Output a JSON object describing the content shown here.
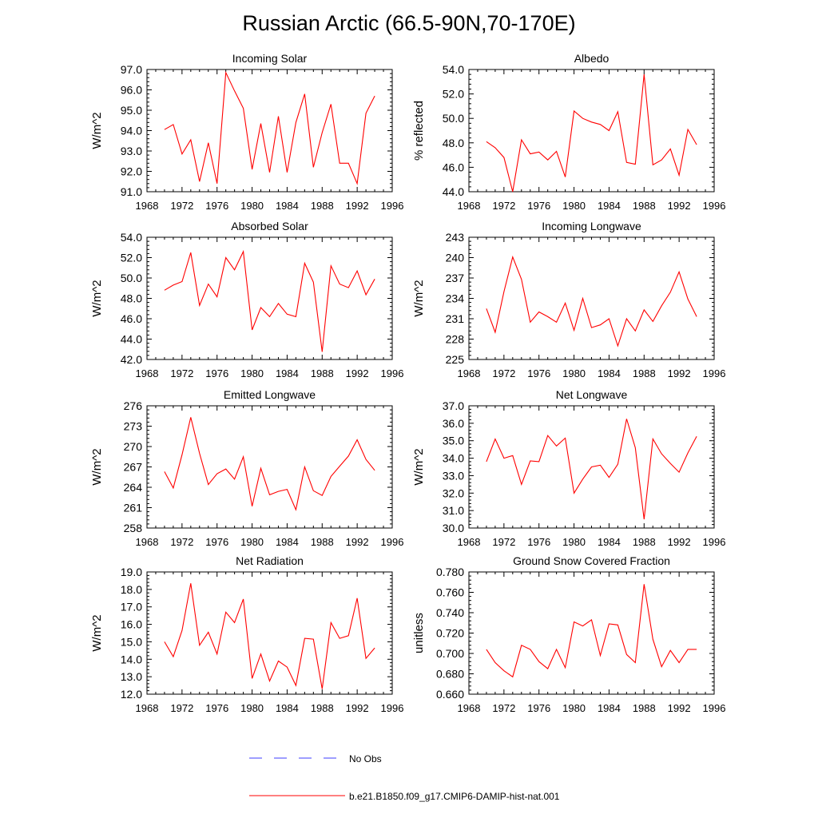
{
  "title": "Russian Arctic (66.5-90N,70-170E)",
  "legend": {
    "obs_label": "No Obs",
    "model_label": "b.e21.B1850.f09_g17.CMIP6-DAMIP-hist-nat.001",
    "obs_color": "#3d3dff",
    "model_color": "#ff0000"
  },
  "chart_data": [
    {
      "type": "line",
      "title": "Incoming Solar",
      "ylabel": "W/m^2",
      "xlim": [
        1968,
        1996
      ],
      "xticks": [
        "1968",
        "1972",
        "1976",
        "1980",
        "1984",
        "1988",
        "1992",
        "1996"
      ],
      "ylim": [
        91.0,
        97.0
      ],
      "yticks": [
        "91.0",
        "92.0",
        "93.0",
        "94.0",
        "95.0",
        "96.0",
        "97.0"
      ],
      "x": [
        1970,
        1971,
        1972,
        1973,
        1974,
        1975,
        1976,
        1977,
        1978,
        1979,
        1980,
        1981,
        1982,
        1983,
        1984,
        1985,
        1986,
        1987,
        1988,
        1989,
        1990,
        1991,
        1992,
        1993,
        1994
      ],
      "series": [
        {
          "values": [
            94.05,
            94.3,
            92.85,
            93.55,
            91.5,
            93.4,
            91.4,
            96.85,
            95.95,
            95.1,
            92.1,
            94.35,
            91.95,
            94.7,
            91.95,
            94.4,
            95.8,
            92.2,
            93.9,
            95.3,
            92.4,
            92.4,
            91.4,
            94.85,
            95.7
          ]
        }
      ]
    },
    {
      "type": "line",
      "title": "Albedo",
      "ylabel": "% reflected",
      "xlim": [
        1968,
        1996
      ],
      "xticks": [
        "1968",
        "1972",
        "1976",
        "1980",
        "1984",
        "1988",
        "1992",
        "1996"
      ],
      "ylim": [
        44.0,
        54.0
      ],
      "yticks": [
        "44.0",
        "46.0",
        "48.0",
        "50.0",
        "52.0",
        "54.0"
      ],
      "x": [
        1970,
        1971,
        1972,
        1973,
        1974,
        1975,
        1976,
        1977,
        1978,
        1979,
        1980,
        1981,
        1982,
        1983,
        1984,
        1985,
        1986,
        1987,
        1988,
        1989,
        1990,
        1991,
        1992,
        1993,
        1994
      ],
      "series": [
        {
          "values": [
            48.1,
            47.6,
            46.8,
            44.0,
            48.25,
            47.1,
            47.25,
            46.6,
            47.3,
            45.2,
            50.6,
            50.0,
            49.7,
            49.5,
            49.0,
            50.55,
            46.4,
            46.25,
            53.6,
            46.2,
            46.6,
            47.5,
            45.35,
            49.1,
            47.85
          ]
        }
      ]
    },
    {
      "type": "line",
      "title": "Absorbed Solar",
      "ylabel": "W/m^2",
      "xlim": [
        1968,
        1996
      ],
      "xticks": [
        "1968",
        "1972",
        "1976",
        "1980",
        "1984",
        "1988",
        "1992",
        "1996"
      ],
      "ylim": [
        42.0,
        54.0
      ],
      "yticks": [
        "42.0",
        "44.0",
        "46.0",
        "48.0",
        "50.0",
        "52.0",
        "54.0"
      ],
      "x": [
        1970,
        1971,
        1972,
        1973,
        1974,
        1975,
        1976,
        1977,
        1978,
        1979,
        1980,
        1981,
        1982,
        1983,
        1984,
        1985,
        1986,
        1987,
        1988,
        1989,
        1990,
        1991,
        1992,
        1993,
        1994
      ],
      "series": [
        {
          "values": [
            48.8,
            49.3,
            49.65,
            52.5,
            47.3,
            49.4,
            48.15,
            52.0,
            50.8,
            52.6,
            44.9,
            47.1,
            46.2,
            47.5,
            46.45,
            46.2,
            51.45,
            49.6,
            42.75,
            51.2,
            49.4,
            49.05,
            50.7,
            48.35,
            49.9
          ]
        }
      ]
    },
    {
      "type": "line",
      "title": "Incoming Longwave",
      "ylabel": "W/m^2",
      "xlim": [
        1968,
        1996
      ],
      "xticks": [
        "1968",
        "1972",
        "1976",
        "1980",
        "1984",
        "1988",
        "1992",
        "1996"
      ],
      "ylim": [
        225,
        243
      ],
      "yticks": [
        "225",
        "228",
        "231",
        "234",
        "237",
        "240",
        "243"
      ],
      "x": [
        1970,
        1971,
        1972,
        1973,
        1974,
        1975,
        1976,
        1977,
        1978,
        1979,
        1980,
        1981,
        1982,
        1983,
        1984,
        1985,
        1986,
        1987,
        1988,
        1989,
        1990,
        1991,
        1992,
        1993,
        1994
      ],
      "series": [
        {
          "values": [
            232.5,
            229.0,
            235.0,
            240.1,
            236.8,
            230.5,
            232.0,
            231.3,
            230.5,
            233.3,
            229.3,
            234.0,
            229.7,
            230.1,
            231.0,
            227.0,
            231.0,
            229.2,
            232.3,
            230.6,
            232.9,
            234.9,
            237.9,
            233.9,
            231.3
          ]
        }
      ]
    },
    {
      "type": "line",
      "title": "Emitted Longwave",
      "ylabel": "W/m^2",
      "xlim": [
        1968,
        1996
      ],
      "xticks": [
        "1968",
        "1972",
        "1976",
        "1980",
        "1984",
        "1988",
        "1992",
        "1996"
      ],
      "ylim": [
        258,
        276
      ],
      "yticks": [
        "258",
        "261",
        "264",
        "267",
        "270",
        "273",
        "276"
      ],
      "x": [
        1970,
        1971,
        1972,
        1973,
        1974,
        1975,
        1976,
        1977,
        1978,
        1979,
        1980,
        1981,
        1982,
        1983,
        1984,
        1985,
        1986,
        1987,
        1988,
        1989,
        1990,
        1991,
        1992,
        1993,
        1994
      ],
      "series": [
        {
          "values": [
            266.3,
            263.9,
            268.8,
            274.3,
            269.0,
            264.4,
            266.0,
            266.7,
            265.2,
            268.5,
            261.2,
            266.8,
            262.9,
            263.4,
            263.7,
            260.7,
            267.0,
            263.5,
            262.8,
            265.6,
            267.1,
            268.6,
            271.0,
            268.1,
            266.5
          ]
        }
      ]
    },
    {
      "type": "line",
      "title": "Net Longwave",
      "ylabel": "W/m^2",
      "xlim": [
        1968,
        1996
      ],
      "xticks": [
        "1968",
        "1972",
        "1976",
        "1980",
        "1984",
        "1988",
        "1992",
        "1996"
      ],
      "ylim": [
        30.0,
        37.0
      ],
      "yticks": [
        "30.0",
        "31.0",
        "32.0",
        "33.0",
        "34.0",
        "35.0",
        "36.0",
        "37.0"
      ],
      "x": [
        1970,
        1971,
        1972,
        1973,
        1974,
        1975,
        1976,
        1977,
        1978,
        1979,
        1980,
        1981,
        1982,
        1983,
        1984,
        1985,
        1986,
        1987,
        1988,
        1989,
        1990,
        1991,
        1992,
        1993,
        1994
      ],
      "series": [
        {
          "values": [
            33.8,
            35.1,
            34.0,
            34.15,
            32.5,
            33.85,
            33.8,
            35.3,
            34.7,
            35.15,
            32.0,
            32.8,
            33.5,
            33.6,
            32.9,
            33.65,
            36.25,
            34.6,
            30.5,
            35.1,
            34.25,
            33.7,
            33.2,
            34.3,
            35.25
          ]
        }
      ]
    },
    {
      "type": "line",
      "title": "Net Radiation",
      "ylabel": "W/m^2",
      "xlim": [
        1968,
        1996
      ],
      "xticks": [
        "1968",
        "1972",
        "1976",
        "1980",
        "1984",
        "1988",
        "1992",
        "1996"
      ],
      "ylim": [
        12.0,
        19.0
      ],
      "yticks": [
        "12.0",
        "13.0",
        "14.0",
        "15.0",
        "16.0",
        "17.0",
        "18.0",
        "19.0"
      ],
      "x": [
        1970,
        1971,
        1972,
        1973,
        1974,
        1975,
        1976,
        1977,
        1978,
        1979,
        1980,
        1981,
        1982,
        1983,
        1984,
        1985,
        1986,
        1987,
        1988,
        1989,
        1990,
        1991,
        1992,
        1993,
        1994
      ],
      "series": [
        {
          "values": [
            15.0,
            14.15,
            15.65,
            18.35,
            14.8,
            15.55,
            14.3,
            16.7,
            16.1,
            17.45,
            12.9,
            14.3,
            12.75,
            13.9,
            13.55,
            12.5,
            15.2,
            15.15,
            12.3,
            16.1,
            15.2,
            15.35,
            17.5,
            14.05,
            14.65
          ]
        }
      ]
    },
    {
      "type": "line",
      "title": "Ground Snow Covered Fraction",
      "ylabel": "unitless",
      "xlim": [
        1968,
        1996
      ],
      "xticks": [
        "1968",
        "1972",
        "1976",
        "1980",
        "1984",
        "1988",
        "1992",
        "1996"
      ],
      "ylim": [
        0.66,
        0.78
      ],
      "yticks": [
        "0.660",
        "0.680",
        "0.700",
        "0.720",
        "0.740",
        "0.760",
        "0.780"
      ],
      "x": [
        1970,
        1971,
        1972,
        1973,
        1974,
        1975,
        1976,
        1977,
        1978,
        1979,
        1980,
        1981,
        1982,
        1983,
        1984,
        1985,
        1986,
        1987,
        1988,
        1989,
        1990,
        1991,
        1992,
        1993,
        1994
      ],
      "series": [
        {
          "values": [
            0.704,
            0.691,
            0.683,
            0.677,
            0.708,
            0.704,
            0.692,
            0.685,
            0.704,
            0.686,
            0.731,
            0.727,
            0.733,
            0.698,
            0.729,
            0.728,
            0.699,
            0.691,
            0.768,
            0.714,
            0.687,
            0.703,
            0.691,
            0.704,
            0.704
          ]
        }
      ]
    }
  ]
}
